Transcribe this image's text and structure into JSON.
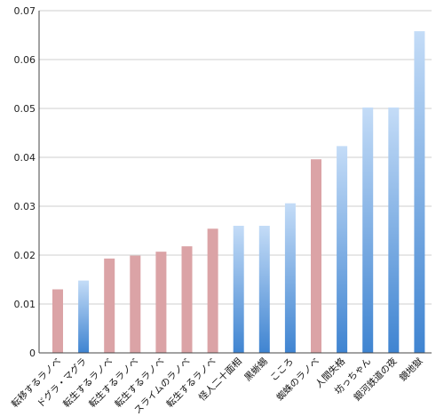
{
  "chart_data": {
    "type": "bar",
    "title": "",
    "xlabel": "",
    "ylabel": "",
    "ylim": [
      0,
      0.07
    ],
    "yticks": [
      "0",
      "0.01",
      "0.02",
      "0.03",
      "0.04",
      "0.05",
      "0.06",
      "0.07"
    ],
    "grid": true,
    "categories": [
      "転移するラノベ",
      "ドグラ・マグラ",
      "転生するラノベ",
      "転生するラノベ",
      "転生するラノベ",
      "スライムのラノベ",
      "転生するラノベ",
      "怪人二十面相",
      "黒蜥蜴",
      "こころ",
      "蜘蛛のラノベ",
      "人間失格",
      "坊っちゃん",
      "銀河鉄道の夜",
      "鏡地獄"
    ],
    "values": [
      0.013,
      0.0148,
      0.0193,
      0.0199,
      0.0207,
      0.0218,
      0.0254,
      0.026,
      0.026,
      0.0306,
      0.0396,
      0.0423,
      0.0502,
      0.0502,
      0.0658
    ],
    "bar_colors": [
      "pink",
      "blue",
      "pink",
      "pink",
      "pink",
      "pink",
      "pink",
      "blue",
      "blue",
      "blue",
      "pink",
      "blue",
      "blue",
      "blue",
      "blue"
    ],
    "colors": {
      "pink": "#dba3a6",
      "blue_top": "#c4dcf7",
      "blue_bottom": "#3f84d1",
      "grid": "#cfcfcf",
      "axis": "#444444"
    }
  }
}
